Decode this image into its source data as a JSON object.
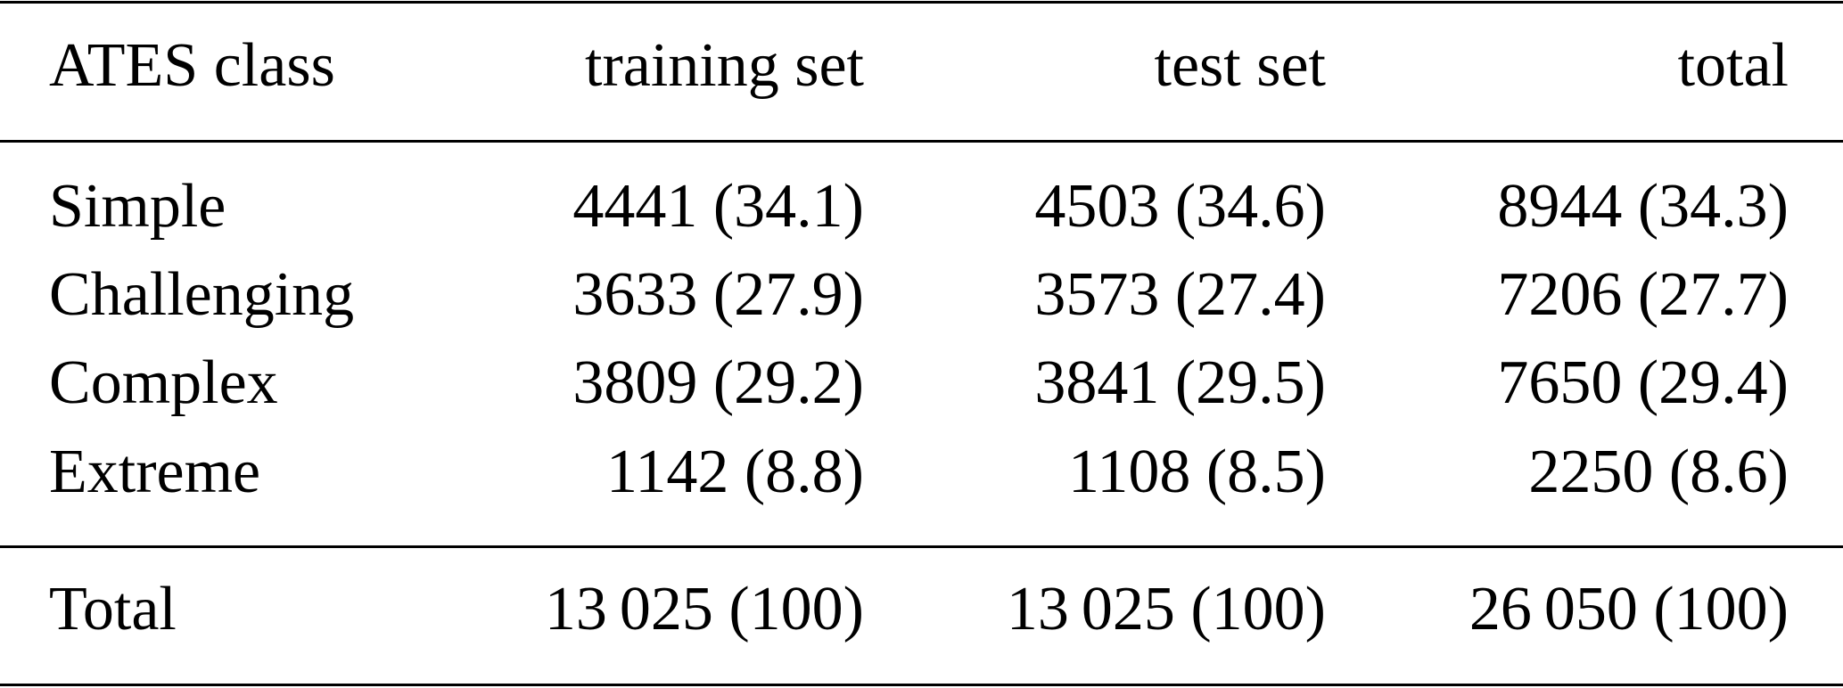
{
  "table": {
    "header": [
      "ATES class",
      "training set",
      "test set",
      "total"
    ],
    "rows": [
      [
        "Simple",
        "4441 (34.1)",
        "4503 (34.6)",
        "8944 (34.3)"
      ],
      [
        "Challenging",
        "3633 (27.9)",
        "3573 (27.4)",
        "7206 (27.7)"
      ],
      [
        "Complex",
        "3809 (29.2)",
        "3841 (29.5)",
        "7650 (29.4)"
      ],
      [
        "Extreme",
        "1142 (8.8)",
        "1108 (8.5)",
        "2250 (8.6)"
      ]
    ],
    "footer": [
      "Total",
      "13 025 (100)",
      "13 025 (100)",
      "26 050 (100)"
    ]
  }
}
